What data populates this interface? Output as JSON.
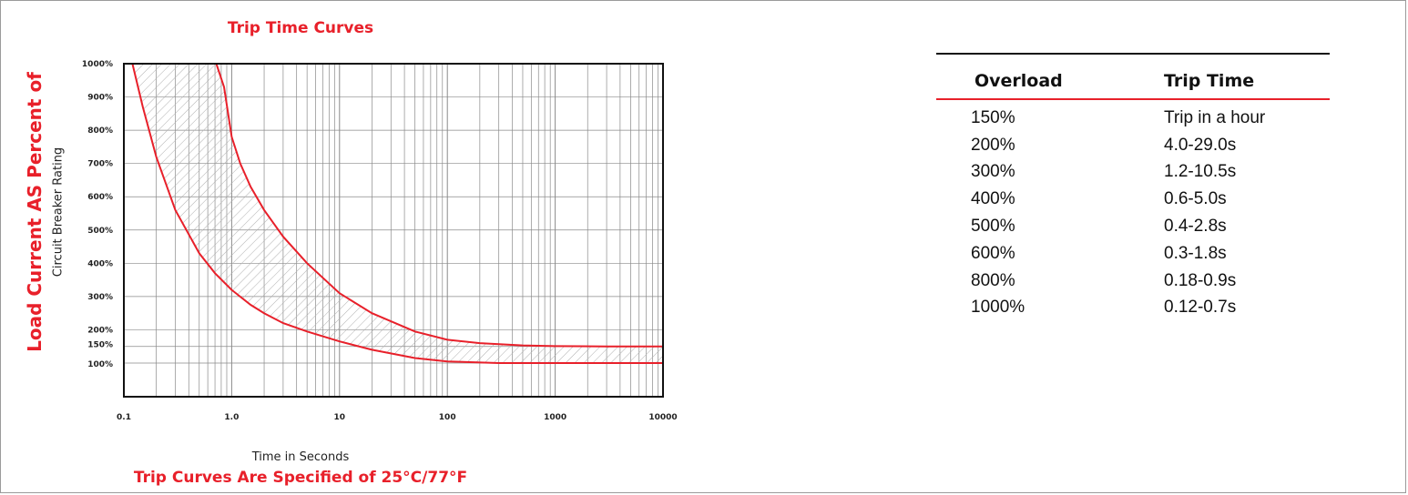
{
  "chart_data": {
    "type": "line",
    "title": "Trip Time Curves",
    "ylabel": "Load Current AS Percent of",
    "ylabel_sub": "Circuit Breaker Rating",
    "xlabel": "Time in Seconds",
    "footnote": "Trip Curves Are Specified of 25°C/77°F",
    "x_scale": "log",
    "xlim": [
      0.1,
      10000
    ],
    "ylim": [
      0,
      1000
    ],
    "grid": true,
    "x_ticks": [
      "0.1",
      "1.0",
      "10",
      "100",
      "1000",
      "10000"
    ],
    "y_ticks": [
      {
        "value": 1000,
        "label": "1000%"
      },
      {
        "value": 900,
        "label": "900%"
      },
      {
        "value": 800,
        "label": "800%"
      },
      {
        "value": 700,
        "label": "700%"
      },
      {
        "value": 600,
        "label": "600%"
      },
      {
        "value": 500,
        "label": "500%"
      },
      {
        "value": 400,
        "label": "400%"
      },
      {
        "value": 300,
        "label": "300%"
      },
      {
        "value": 200,
        "label": "200%"
      },
      {
        "value": 150,
        "label": "150%"
      },
      {
        "value": 100,
        "label": "100%"
      }
    ],
    "series": [
      {
        "key": "upper",
        "x": [
          0.72,
          0.85,
          1.0,
          1.2,
          1.5,
          2.0,
          3.0,
          5.0,
          10,
          20,
          50,
          100,
          200,
          500,
          1000,
          3000,
          10000
        ],
        "y": [
          1000,
          930,
          780,
          700,
          630,
          560,
          480,
          400,
          310,
          250,
          195,
          170,
          160,
          153,
          151,
          150,
          150
        ]
      },
      {
        "key": "lower",
        "x": [
          0.12,
          0.15,
          0.2,
          0.3,
          0.5,
          0.7,
          1.0,
          1.5,
          2.0,
          3.0,
          5.0,
          10,
          20,
          50,
          100,
          300,
          1000,
          10000
        ],
        "y": [
          1000,
          870,
          720,
          560,
          430,
          370,
          320,
          275,
          250,
          220,
          195,
          165,
          140,
          115,
          105,
          100,
          100,
          100
        ]
      }
    ],
    "shaded_region": "between upper and lower curves",
    "colors": {
      "curve": "#e8202a",
      "grid": "#8a8a8a",
      "hatch": "#b0b0b0"
    }
  },
  "table": {
    "headers": [
      "Overload",
      "Trip Time"
    ],
    "rows": [
      [
        "150%",
        "Trip in a hour"
      ],
      [
        "200%",
        "4.0-29.0s"
      ],
      [
        "300%",
        "1.2-10.5s"
      ],
      [
        "400%",
        "0.6-5.0s"
      ],
      [
        "500%",
        "0.4-2.8s"
      ],
      [
        "600%",
        "0.3-1.8s"
      ],
      [
        "800%",
        "0.18-0.9s"
      ],
      [
        "1000%",
        "0.12-0.7s"
      ]
    ]
  }
}
